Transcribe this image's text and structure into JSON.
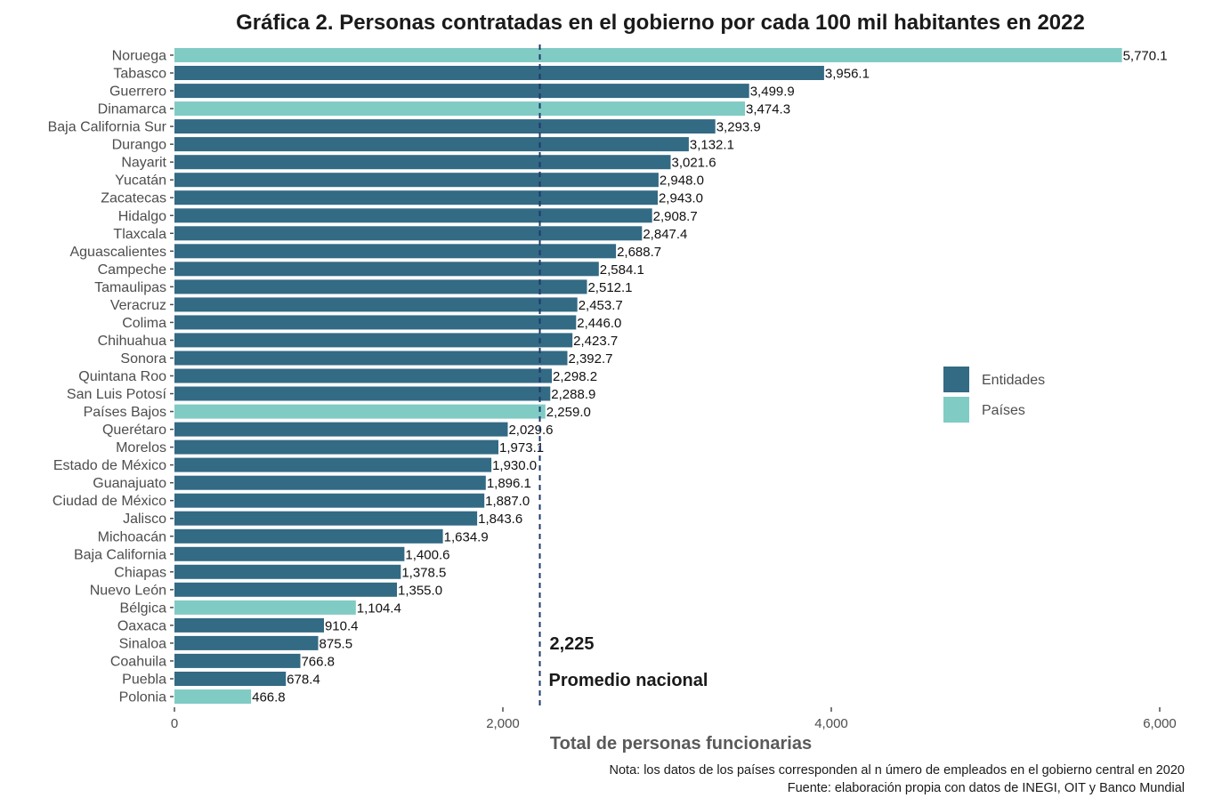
{
  "chart_data": {
    "type": "bar",
    "orientation": "horizontal",
    "title": "Gráfica 2. Personas contratadas en el gobierno por cada 100 mil habitantes en 2022",
    "xlabel": "Total de personas funcionarias",
    "ylabel": "",
    "xlim": [
      0,
      6000
    ],
    "xticks": [
      0,
      2000,
      4000,
      6000
    ],
    "xtick_labels": [
      "0",
      "2,000",
      "4,000",
      "6,000"
    ],
    "grid": false,
    "legend_position": "right",
    "legend": [
      {
        "name": "Entidades",
        "color": "#336a84"
      },
      {
        "name": "Países",
        "color": "#80cbc4"
      }
    ],
    "categories": [
      "Noruega",
      "Tabasco",
      "Guerrero",
      "Dinamarca",
      "Baja California Sur",
      "Durango",
      "Nayarit",
      "Yucatán",
      "Zacatecas",
      "Hidalgo",
      "Tlaxcala",
      "Aguascalientes",
      "Campeche",
      "Tamaulipas",
      "Veracruz",
      "Colima",
      "Chihuahua",
      "Sonora",
      "Quintana Roo",
      "San Luis Potosí",
      "Países Bajos",
      "Querétaro",
      "Morelos",
      "Estado de México",
      "Guanajuato",
      "Ciudad de México",
      "Jalisco",
      "Michoacán",
      "Baja California",
      "Chiapas",
      "Nuevo León",
      "Bélgica",
      "Oaxaca",
      "Sinaloa",
      "Coahuila",
      "Puebla",
      "Polonia"
    ],
    "values": [
      5770.1,
      3956.1,
      3499.9,
      3474.3,
      3293.9,
      3132.1,
      3021.6,
      2948.0,
      2943.0,
      2908.7,
      2847.4,
      2688.7,
      2584.1,
      2512.1,
      2453.7,
      2446.0,
      2423.7,
      2392.7,
      2298.2,
      2288.9,
      2259.0,
      2029.6,
      1973.1,
      1930.0,
      1896.1,
      1887.0,
      1843.6,
      1634.9,
      1400.6,
      1378.5,
      1355.0,
      1104.4,
      910.4,
      875.5,
      766.8,
      678.4,
      466.8
    ],
    "value_labels": [
      "5,770.1",
      "3,956.1",
      "3,499.9",
      "3,474.3",
      "3,293.9",
      "3,132.1",
      "3,021.6",
      "2,948.0",
      "2,943.0",
      "2,908.7",
      "2,847.4",
      "2,688.7",
      "2,584.1",
      "2,512.1",
      "2,453.7",
      "2,446.0",
      "2,423.7",
      "2,392.7",
      "2,298.2",
      "2,288.9",
      "2,259.0",
      "2,029.6",
      "1,973.1",
      "1,930.0",
      "1,896.1",
      "1,887.0",
      "1,843.6",
      "1,634.9",
      "1,400.6",
      "1,378.5",
      "1,355.0",
      "1,104.4",
      "910.4",
      "875.5",
      "766.8",
      "678.4",
      "466.8"
    ],
    "groups": [
      "Países",
      "Entidades",
      "Entidades",
      "Países",
      "Entidades",
      "Entidades",
      "Entidades",
      "Entidades",
      "Entidades",
      "Entidades",
      "Entidades",
      "Entidades",
      "Entidades",
      "Entidades",
      "Entidades",
      "Entidades",
      "Entidades",
      "Entidades",
      "Entidades",
      "Entidades",
      "Países",
      "Entidades",
      "Entidades",
      "Entidades",
      "Entidades",
      "Entidades",
      "Entidades",
      "Entidades",
      "Entidades",
      "Entidades",
      "Entidades",
      "Países",
      "Entidades",
      "Entidades",
      "Entidades",
      "Entidades",
      "Países"
    ],
    "reference_line": {
      "value": 2225,
      "value_label": "2,225",
      "label": "Promedio nacional",
      "style": "dashed",
      "color": "#1f3a6b"
    },
    "notes": [
      "Nota: los datos de los países corresponden al n úmero de empleados en el gobierno central en 2020",
      "Fuente: elaboración propia con datos de INEGI, OIT y Banco Mundial"
    ]
  }
}
